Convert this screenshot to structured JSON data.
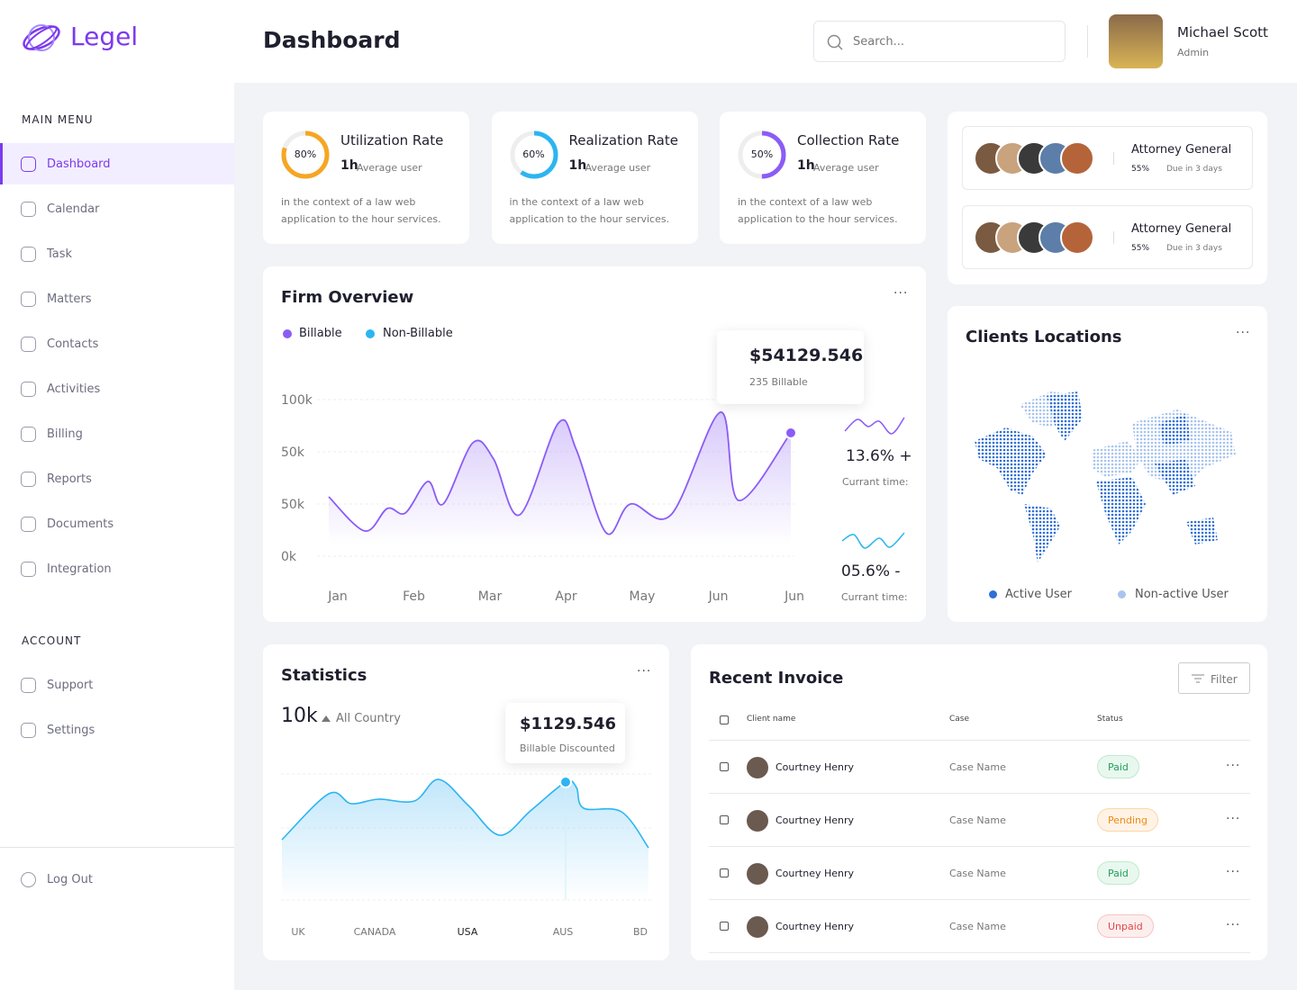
{
  "brand": "Legel",
  "header": {
    "title": "Dashboard",
    "search_placeholder": "Search...",
    "user": {
      "name": "Michael Scott",
      "role": "Admin"
    }
  },
  "sidebar": {
    "main_menu_title": "MAIN MENU",
    "main_menu": [
      "Dashboard",
      "Calendar",
      "Task",
      "Matters",
      "Contacts",
      "Activities",
      "Billing",
      "Reports",
      "Documents",
      "Integration"
    ],
    "account_title": "ACCOUNT",
    "account_menu": [
      "Support",
      "Settings"
    ],
    "logout": "Log Out"
  },
  "rate_cards": [
    {
      "title": "Utilization Rate",
      "value": 80,
      "label": "80%",
      "color": "#f5a623",
      "hours": "1h",
      "hours_caption": "Average user",
      "description": "in the context of a law web application to the hour services."
    },
    {
      "title": "Realization Rate",
      "value": 60,
      "label": "60%",
      "color": "#2cb5f0",
      "hours": "1h",
      "hours_caption": "Average user",
      "description": "in the context of a law web application to the hour services."
    },
    {
      "title": "Collection Rate",
      "value": 50,
      "label": "50%",
      "color": "#8b5cf6",
      "hours": "1h",
      "hours_caption": "Average user",
      "description": "in the context of a law web application to the hour services."
    }
  ],
  "attorneys": [
    {
      "title": "Attorney General",
      "percent": "55%",
      "due": "Due in 3 days"
    },
    {
      "title": "Attorney General",
      "percent": "55%",
      "due": "Due in 3 days"
    }
  ],
  "firm_overview": {
    "title": "Firm Overview",
    "legend": [
      "Billable",
      "Non-Billable"
    ],
    "y_labels": [
      "100k",
      "50k",
      "50k",
      "0k"
    ],
    "x_labels": [
      "Jan",
      "Feb",
      "Mar",
      "Apr",
      "May",
      "Jun",
      "Jun"
    ],
    "tooltip": {
      "value": "$54129.546",
      "caption": "235 Billable"
    },
    "stats": [
      {
        "value": "13.6% +",
        "caption": "Currant time:"
      },
      {
        "value": "05.6% -",
        "caption": "Currant time:"
      }
    ]
  },
  "clients_locations": {
    "title": "Clients Locations",
    "legend": [
      "Active User",
      "Non-active User"
    ]
  },
  "statistics": {
    "title": "Statistics",
    "total": "10k",
    "scope": "All Country",
    "tooltip": {
      "value": "$1129.546",
      "caption": "Billable Discounted"
    },
    "x_labels": [
      "UK",
      "CANADA",
      "USA",
      "AUS",
      "BD"
    ]
  },
  "invoice": {
    "title": "Recent Invoice",
    "filter": "Filter",
    "columns": [
      "Client name",
      "Case",
      "Status"
    ],
    "rows": [
      {
        "client": "Courtney Henry",
        "case": "Case Name",
        "status": "Paid"
      },
      {
        "client": "Courtney Henry",
        "case": "Case Name",
        "status": "Pending"
      },
      {
        "client": "Courtney Henry",
        "case": "Case Name",
        "status": "Paid"
      },
      {
        "client": "Courtney Henry",
        "case": "Case Name",
        "status": "Unpaid"
      }
    ]
  }
}
